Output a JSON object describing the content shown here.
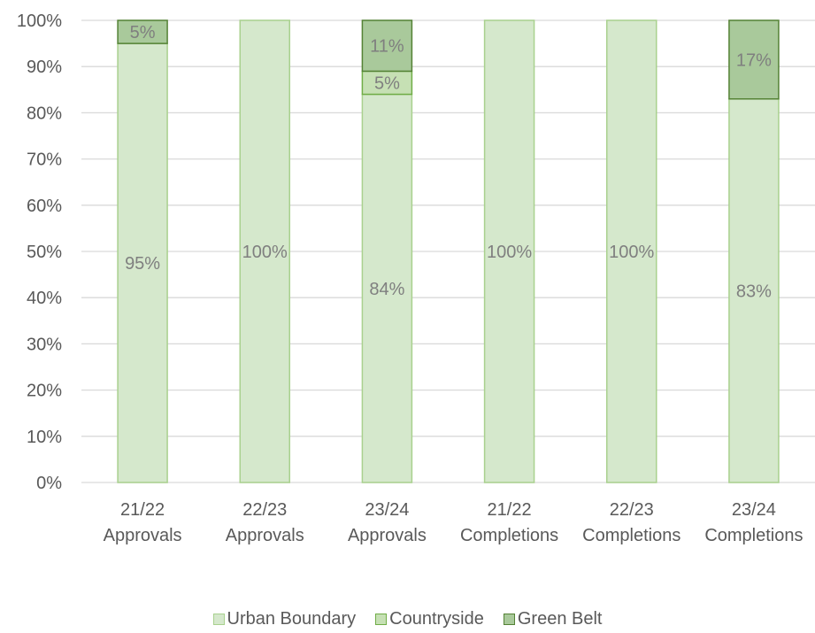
{
  "chart_data": {
    "type": "bar",
    "stacked": true,
    "percent_stacked": true,
    "categories": [
      [
        "21/22",
        "Approvals"
      ],
      [
        "22/23",
        "Approvals"
      ],
      [
        "23/24",
        "Approvals"
      ],
      [
        "21/22",
        "Completions"
      ],
      [
        "22/23",
        "Completions"
      ],
      [
        "23/24",
        "Completions"
      ]
    ],
    "series": [
      {
        "name": "Urban Boundary",
        "values": [
          95,
          100,
          84,
          100,
          100,
          83
        ],
        "labels": [
          "95%",
          "100%",
          "84%",
          "100%",
          "100%",
          "83%"
        ],
        "fill": "#d5e8cc",
        "stroke": "#a9d18e"
      },
      {
        "name": "Countryside",
        "values": [
          0,
          0,
          5,
          0,
          0,
          0
        ],
        "labels": [
          "",
          "",
          "5%",
          "",
          "",
          ""
        ],
        "fill": "#c6e0b4",
        "stroke": "#70ad47"
      },
      {
        "name": "Green Belt",
        "values": [
          5,
          0,
          11,
          0,
          0,
          17
        ],
        "labels": [
          "5%",
          "",
          "11%",
          "",
          "",
          "17%"
        ],
        "fill": "#a9c99b",
        "stroke": "#548235"
      }
    ],
    "ylim": [
      0,
      100
    ],
    "yticks": [
      "0%",
      "10%",
      "20%",
      "30%",
      "40%",
      "50%",
      "60%",
      "70%",
      "80%",
      "90%",
      "100%"
    ],
    "grid": true,
    "legend_position": "bottom",
    "title": "",
    "xlabel": "",
    "ylabel": ""
  }
}
